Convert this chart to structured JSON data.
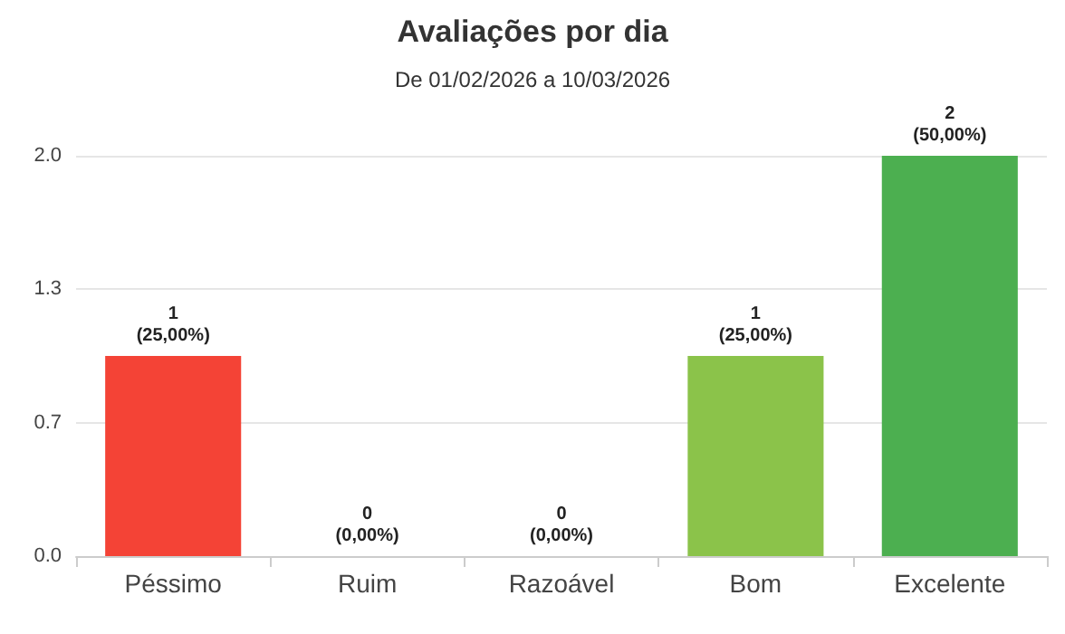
{
  "chart_data": {
    "type": "bar",
    "title": "Avaliações por dia",
    "subtitle": "De 01/02/2026 a 10/03/2026",
    "categories": [
      "Péssimo",
      "Ruim",
      "Razoável",
      "Bom",
      "Excelente"
    ],
    "values": [
      1,
      0,
      0,
      1,
      2
    ],
    "colors": [
      "#f44336",
      "#ff9800",
      "#ffc107",
      "#8bc34a",
      "#4caf50"
    ],
    "value_labels": [
      "1\n(25,00%)",
      "0\n(0,00%)",
      "0\n(0,00%)",
      "1\n(25,00%)",
      "2\n(50,00%)"
    ],
    "ylim": [
      0,
      2
    ],
    "yticks": [
      {
        "value": 0,
        "label": "0.0"
      },
      {
        "value": 0.667,
        "label": "0.7"
      },
      {
        "value": 1.333,
        "label": "1.3"
      },
      {
        "value": 2,
        "label": "2.0"
      }
    ],
    "grid": "y"
  }
}
